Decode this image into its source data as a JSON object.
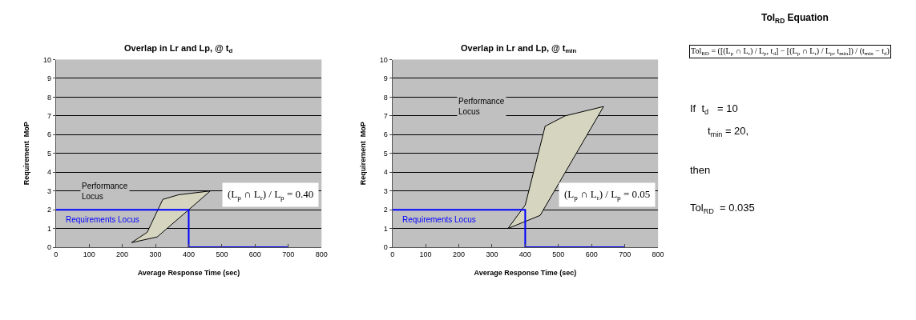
{
  "chart_data": [
    {
      "type": "line",
      "title": "Overlap in Lr and Lp, @ t$_{d}$",
      "xlabel": "Average Response Time (sec)",
      "ylabel": "Requirement  MoP",
      "xlim": [
        0,
        800
      ],
      "ylim": [
        0,
        10
      ],
      "xticks": [
        0,
        100,
        200,
        300,
        400,
        500,
        600,
        700,
        800
      ],
      "yticks": [
        0,
        1,
        2,
        3,
        4,
        5,
        6,
        7,
        8,
        9,
        10
      ],
      "grid": "y",
      "series": [
        {
          "name": "Requirements Locus",
          "color": "#0000ff",
          "x": [
            0,
            400,
            400,
            700
          ],
          "values": [
            2,
            2,
            0,
            0
          ]
        },
        {
          "name": "Performance Locus",
          "type": "area",
          "color": "#d6d6c0",
          "x": [
            228,
            275,
            322,
            370,
            465,
            400,
            305,
            228
          ],
          "values": [
            0.25,
            0.8,
            2.55,
            2.8,
            3.0,
            2.0,
            0.55,
            0.25
          ]
        }
      ],
      "annotations": [
        "(L$_{p}$ ∩ L$_{r}$) / L$_{p}$ = 0.40"
      ]
    },
    {
      "type": "line",
      "title": "Overlap in Lr and Lp, @ t$_{min}$",
      "xlabel": "Average Response Time (sec)",
      "ylabel": "Requirement  MoP",
      "xlim": [
        0,
        800
      ],
      "ylim": [
        0,
        10
      ],
      "xticks": [
        0,
        100,
        200,
        300,
        400,
        500,
        600,
        700,
        800
      ],
      "yticks": [
        0,
        1,
        2,
        3,
        4,
        5,
        6,
        7,
        8,
        9,
        10
      ],
      "grid": "y",
      "series": [
        {
          "name": "Requirements Locus",
          "color": "#0000ff",
          "x": [
            0,
            400,
            400,
            700
          ],
          "values": [
            2,
            2,
            0,
            0
          ]
        },
        {
          "name": "Performance Locus",
          "type": "area",
          "color": "#d6d6c0",
          "x": [
            348,
            400,
            460,
            520,
            636,
            445,
            348
          ],
          "values": [
            1.0,
            2.25,
            6.45,
            7.0,
            7.5,
            1.7,
            1.0
          ]
        }
      ],
      "annotations": [
        "(L$_{p}$ ∩ L$_{r}$) / L$_{p}$ = 0.05"
      ]
    },
    {
      "type": "other",
      "title": "Tol$_{RD}$ Equation",
      "annotations": [
        "Tol$_{RD}$ = ([(L$_{p}$ ∩ L$_{r}$) / L$_{p}$, t$_{d}$] − [(L$_{p}$ ∩ L$_{r}$) / L$_{p}$, t$_{min}$]) / (t$_{min}$ − t$_{d}$)",
        "If  t$_{d}$   = 10",
        "t$_{min}$ = 20,",
        "then",
        "Tol$_{RD}$  = 0.035"
      ]
    }
  ]
}
